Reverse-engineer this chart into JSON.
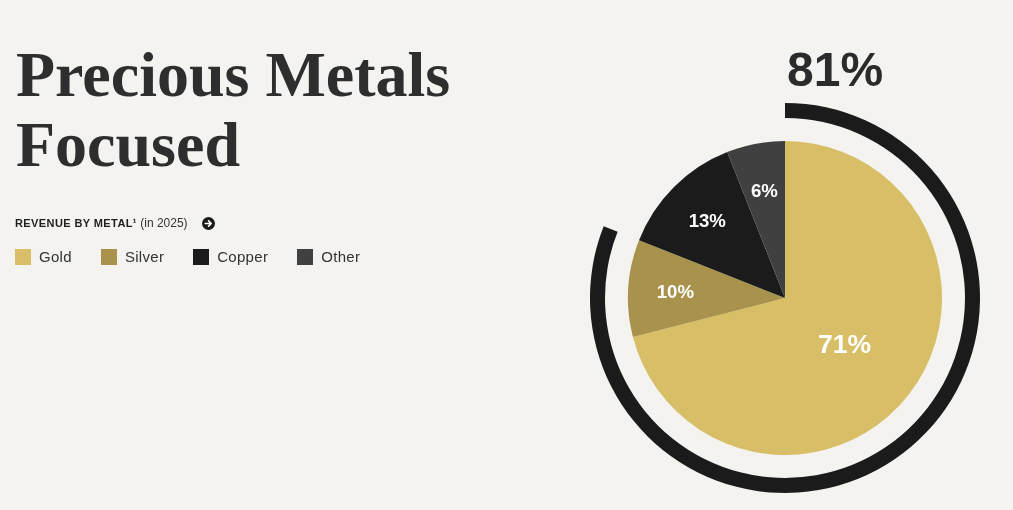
{
  "chart_data": {
    "type": "pie",
    "title": "Precious Metals Focused",
    "subtitle": "REVENUE BY METAL¹ (in 2025)",
    "categories": [
      "Gold",
      "Silver",
      "Copper",
      "Other"
    ],
    "legend": "left",
    "series": [
      {
        "values": [
          71,
          10,
          13,
          6
        ],
        "colors": [
          "#d8bf67",
          "#a8924c",
          "#1b1b1b",
          "#404040"
        ],
        "value_labels": [
          "71%",
          "10%",
          "13%",
          "6%"
        ]
      },
      {
        "type": "donut",
        "values": [
          81,
          null,
          null,
          null
        ],
        "colors": [
          "#1b1b1b",
          null,
          null,
          null
        ],
        "value_labels": [
          "81%",
          null,
          null,
          null
        ]
      }
    ]
  }
}
